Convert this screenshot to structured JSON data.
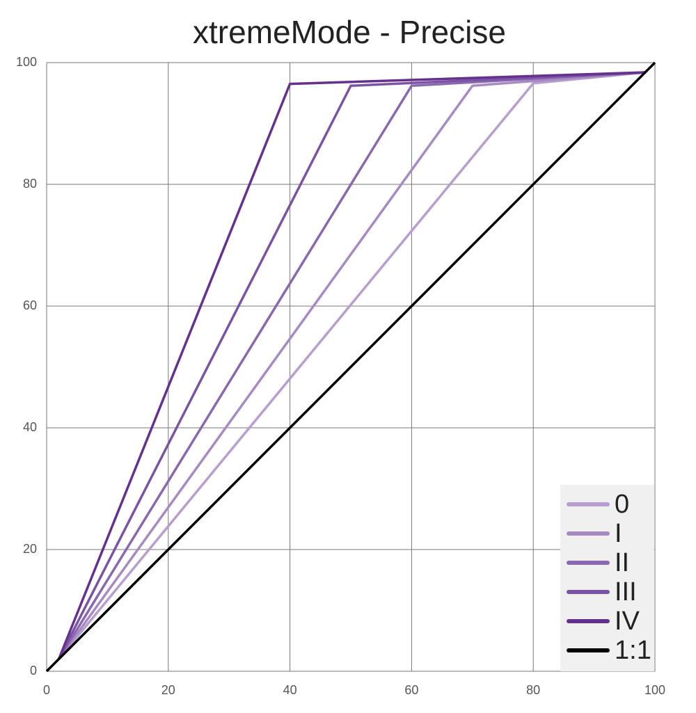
{
  "chart_data": {
    "type": "line",
    "title": "xtremeMode - Precise",
    "xlim": [
      0,
      100
    ],
    "ylim": [
      0,
      100
    ],
    "xticks": [
      0,
      20,
      40,
      60,
      80,
      100
    ],
    "yticks": [
      0,
      20,
      40,
      60,
      80,
      100
    ],
    "grid": true,
    "legend": "lower right",
    "series": [
      {
        "name": "0",
        "color": "#b89dd0",
        "x": [
          2,
          80,
          98.5
        ],
        "values": [
          2,
          96.6,
          98.4
        ]
      },
      {
        "name": "I",
        "color": "#a78ac4",
        "x": [
          2,
          70,
          98.5
        ],
        "values": [
          2,
          96.2,
          98.4
        ]
      },
      {
        "name": "II",
        "color": "#8a68b0",
        "x": [
          2,
          60,
          98.5
        ],
        "values": [
          2,
          96.2,
          98.4
        ]
      },
      {
        "name": "III",
        "color": "#7a53a5",
        "x": [
          2,
          50,
          98.5
        ],
        "values": [
          2,
          96.2,
          98.4
        ]
      },
      {
        "name": "IV",
        "color": "#66308f",
        "x": [
          2,
          40,
          98.5
        ],
        "values": [
          2,
          96.5,
          98.4
        ]
      },
      {
        "name": "1:1",
        "color": "#000000",
        "x": [
          0,
          100
        ],
        "values": [
          0,
          100
        ]
      }
    ]
  }
}
